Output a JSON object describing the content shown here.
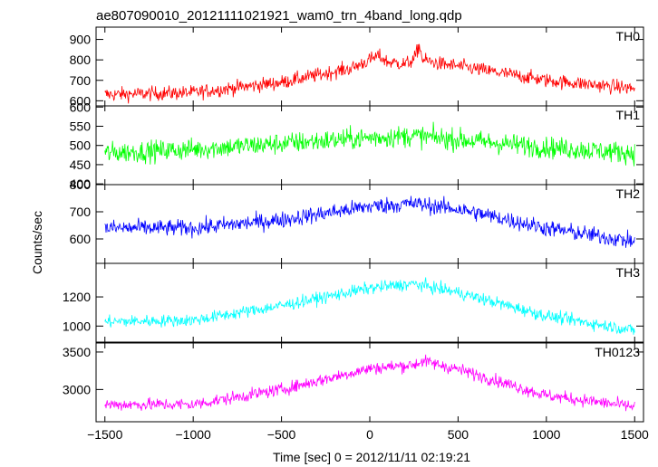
{
  "chart_data": {
    "type": "line",
    "title": "ae807090010_20121111021921_wam0_trn_4band_long.qdp",
    "xlabel": "Time [sec] 0 = 2012/11/11 02:19:21",
    "ylabel": "Counts/sec",
    "xlim": [
      -1550,
      1550
    ],
    "x_ticks": [
      -1500,
      -1000,
      -500,
      0,
      500,
      1000,
      1500
    ],
    "x_tick_labels": [
      "−1500",
      "−1000",
      "−500",
      "0",
      "500",
      "1000",
      "1500"
    ],
    "grid": false,
    "panels": [
      {
        "name": "TH0",
        "color": "#ff0000",
        "ylim": [
          575,
          960
        ],
        "y_ticks": [
          600,
          700,
          800,
          900
        ],
        "y_tick_labels": [
          "600",
          "700",
          "800",
          "900"
        ],
        "envelope": {
          "x": [
            -1500,
            -1000,
            -500,
            -100,
            0,
            50,
            100,
            200,
            250,
            280,
            300,
            400,
            500,
            1000,
            1500
          ],
          "y": [
            630,
            640,
            690,
            760,
            800,
            820,
            790,
            780,
            800,
            870,
            800,
            780,
            770,
            700,
            660
          ]
        },
        "scatter": 25
      },
      {
        "name": "TH1",
        "color": "#00ff00",
        "ylim": [
          398,
          603
        ],
        "y_ticks": [
          400,
          450,
          500,
          550,
          600
        ],
        "y_tick_labels": [
          "400",
          "450",
          "500",
          "550",
          "600"
        ],
        "envelope": {
          "x": [
            -1500,
            -1000,
            -500,
            0,
            250,
            500,
            1000,
            1500
          ],
          "y": [
            480,
            490,
            505,
            520,
            525,
            515,
            495,
            480
          ]
        },
        "scatter": 20
      },
      {
        "name": "TH2",
        "color": "#0000ff",
        "ylim": [
          510,
          800
        ],
        "y_ticks": [
          600,
          700,
          800
        ],
        "y_tick_labels": [
          "600",
          "700",
          "800"
        ],
        "envelope": {
          "x": [
            -1500,
            -1000,
            -500,
            0,
            250,
            500,
            1000,
            1500
          ],
          "y": [
            640,
            640,
            670,
            720,
            730,
            710,
            640,
            590
          ]
        },
        "scatter": 22
      },
      {
        "name": "TH3",
        "color": "#00ffff",
        "ylim": [
          890,
          1430
        ],
        "y_ticks": [
          1000,
          1200
        ],
        "y_tick_labels": [
          "1000",
          "1200"
        ],
        "envelope": {
          "x": [
            -1500,
            -1000,
            -500,
            0,
            250,
            500,
            1000,
            1500
          ],
          "y": [
            1030,
            1040,
            1140,
            1260,
            1290,
            1230,
            1070,
            970
          ]
        },
        "scatter": 30
      },
      {
        "name": "TH0123",
        "color": "#ff00ff",
        "ylim": [
          2570,
          3620
        ],
        "y_ticks": [
          3000,
          3500
        ],
        "y_tick_labels": [
          "3000",
          "3500"
        ],
        "envelope": {
          "x": [
            -1500,
            -1000,
            -500,
            0,
            250,
            300,
            500,
            1000,
            1500
          ],
          "y": [
            2800,
            2800,
            3000,
            3280,
            3330,
            3380,
            3270,
            2920,
            2770
          ]
        },
        "scatter": 60
      }
    ]
  }
}
